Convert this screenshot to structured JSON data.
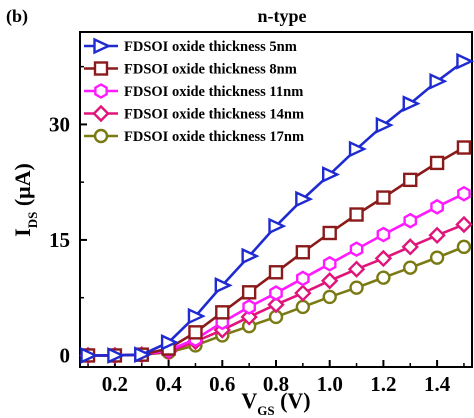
{
  "chart_data": {
    "type": "line",
    "panel_label": "(b)",
    "title": "n-type",
    "xlabel": {
      "main": "V",
      "sub": "GS",
      "unit": " (V)"
    },
    "ylabel": {
      "main": "I",
      "sub": "DS",
      "unit": " (μA)"
    },
    "xlim": [
      0.07,
      1.53
    ],
    "ylim": [
      -1.5,
      42
    ],
    "xticks": [
      0.2,
      0.4,
      0.6,
      0.8,
      1.0,
      1.2,
      1.4
    ],
    "xtick_labels": [
      "0.2",
      "0.4",
      "0.6",
      "0.8",
      "1.0",
      "1.2",
      "1.4"
    ],
    "yticks": [
      0,
      15,
      30
    ],
    "ytick_labels": [
      "0",
      "15",
      "30"
    ],
    "grid": false,
    "legend_position": "top-left",
    "x": [
      0.1,
      0.2,
      0.3,
      0.4,
      0.5,
      0.6,
      0.7,
      0.8,
      0.9,
      1.0,
      1.1,
      1.2,
      1.3,
      1.4,
      1.5
    ],
    "series": [
      {
        "name": "FDSOI oxide thickness 5nm",
        "color": "#1f2bd0",
        "marker": "triangle-right",
        "values": [
          0,
          0,
          0.1,
          1.7,
          5.1,
          9.1,
          12.9,
          16.8,
          20.3,
          23.5,
          26.8,
          29.9,
          32.7,
          35.6,
          38.2
        ]
      },
      {
        "name": "FDSOI oxide thickness 8nm",
        "color": "#8b1a1a",
        "marker": "square",
        "values": [
          0,
          0,
          0.1,
          0.9,
          3.0,
          5.6,
          8.2,
          10.8,
          13.4,
          15.9,
          18.3,
          20.5,
          22.8,
          25.0,
          27.0
        ]
      },
      {
        "name": "FDSOI oxide thickness 11nm",
        "color": "#ff1aff",
        "marker": "hexagon",
        "values": [
          0,
          0,
          0.1,
          0.7,
          2.1,
          4.3,
          6.3,
          8.1,
          10.0,
          11.9,
          13.8,
          15.7,
          17.5,
          19.3,
          21.0
        ]
      },
      {
        "name": "FDSOI oxide thickness 14nm",
        "color": "#e0147a",
        "marker": "diamond",
        "values": [
          0,
          0,
          0.1,
          0.5,
          1.8,
          3.3,
          5.0,
          6.6,
          8.1,
          9.7,
          11.2,
          12.6,
          14.1,
          15.6,
          17.0
        ]
      },
      {
        "name": "FDSOI oxide thickness 17nm",
        "color": "#7a7a14",
        "marker": "circle",
        "values": [
          0,
          0,
          0.1,
          0.4,
          1.3,
          2.6,
          3.8,
          5.0,
          6.3,
          7.6,
          8.8,
          10.1,
          11.4,
          12.7,
          14.1
        ]
      }
    ]
  }
}
